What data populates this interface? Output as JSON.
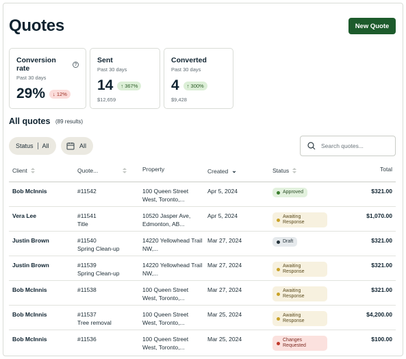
{
  "page": {
    "title": "Quotes",
    "new_quote_label": "New Quote"
  },
  "cards": [
    {
      "title": "Conversion rate",
      "subtitle": "Past 30 days",
      "value": "29%",
      "change": "12%",
      "direction": "down",
      "money": ""
    },
    {
      "title": "Sent",
      "subtitle": "Past 30 days",
      "value": "14",
      "change": "367%",
      "direction": "up",
      "money": "$12,659"
    },
    {
      "title": "Converted",
      "subtitle": "Past 30 days",
      "value": "4",
      "change": "300%",
      "direction": "up",
      "money": "$9,428"
    }
  ],
  "section": {
    "title": "All quotes",
    "count": "(89 results)"
  },
  "filters": {
    "status_label": "Status",
    "status_value": "All",
    "date_value": "All",
    "search_placeholder": "Search quotes..."
  },
  "table": {
    "columns": {
      "client": "Client",
      "quote": "Quote...",
      "property": "Property",
      "created": "Created",
      "status": "Status",
      "total": "Total"
    },
    "rows": [
      {
        "client": "Bob McInnis",
        "quote": "#11542",
        "quote_title": "",
        "property": "100 Queen Street West, Toronto,...",
        "created": "Apr 5, 2024",
        "status": "Approved",
        "status_type": "approved",
        "total": "$321.00"
      },
      {
        "client": "Vera Lee",
        "quote": "#11541",
        "quote_title": "Title",
        "property": "10520 Jasper Ave, Edmonton, AB...",
        "created": "Apr 5, 2024",
        "status": "Awaiting Response",
        "status_type": "awaiting",
        "total": "$1,070.00"
      },
      {
        "client": "Justin Brown",
        "quote": "#11540",
        "quote_title": "Spring Clean-up",
        "property": "14220 Yellowhead Trail NW,...",
        "created": "Mar 27, 2024",
        "status": "Draft",
        "status_type": "draft",
        "total": "$321.00"
      },
      {
        "client": "Justin Brown",
        "quote": "#11539",
        "quote_title": "Spring Clean-up",
        "property": "14220 Yellowhead Trail NW,...",
        "created": "Mar 27, 2024",
        "status": "Awaiting Response",
        "status_type": "awaiting",
        "total": "$321.00"
      },
      {
        "client": "Bob McInnis",
        "quote": "#11538",
        "quote_title": "",
        "property": "100 Queen Street West, Toronto,...",
        "created": "Mar 27, 2024",
        "status": "Awaiting Response",
        "status_type": "awaiting",
        "total": "$321.00"
      },
      {
        "client": "Bob McInnis",
        "quote": "#11537",
        "quote_title": "Tree removal",
        "property": "100 Queen Street West, Toronto,...",
        "created": "Mar 25, 2024",
        "status": "Awaiting Response",
        "status_type": "awaiting",
        "total": "$4,200.00"
      },
      {
        "client": "Bob McInnis",
        "quote": "#11536",
        "quote_title": "",
        "property": "100 Queen Street West, Toronto,...",
        "created": "Mar 25, 2024",
        "status": "Changes Requested",
        "status_type": "changes",
        "total": "$100.00"
      }
    ]
  },
  "colors": {
    "primary": "#1d5b2c",
    "approved": "#3a7d2d",
    "awaiting": "#c9a227",
    "changes": "#c0392b"
  }
}
